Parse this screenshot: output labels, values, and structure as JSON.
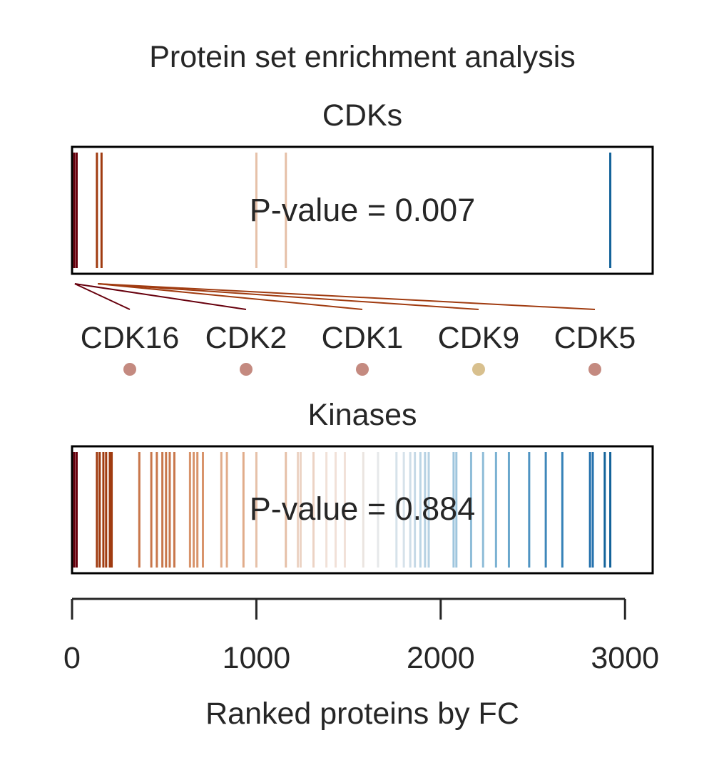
{
  "chart_data": {
    "type": "barcode",
    "title": "Protein set enrichment analysis",
    "xlabel": "Ranked proteins by FC",
    "xlim": [
      0,
      3150
    ],
    "xticks": [
      0,
      1000,
      2000,
      3000
    ],
    "xtick_labels": [
      "0",
      "1000",
      "2000",
      "3000"
    ],
    "panels": [
      {
        "name": "CDKs",
        "pvalue_text": "P-value = 0.007",
        "ranks": [
          {
            "x": 12,
            "color": "#67000d"
          },
          {
            "x": 25,
            "color": "#67000d"
          },
          {
            "x": 135,
            "color": "#a03b10"
          },
          {
            "x": 160,
            "color": "#a03b10"
          },
          {
            "x": 1000,
            "color": "#e6c0a8"
          },
          {
            "x": 1160,
            "color": "#e6c0a8"
          },
          {
            "x": 2920,
            "color": "#14639a"
          }
        ]
      },
      {
        "name": "Kinases",
        "pvalue_text": "P-value = 0.884",
        "ranks": [
          {
            "x": 12,
            "color": "#67000d"
          },
          {
            "x": 25,
            "color": "#67000d"
          },
          {
            "x": 135,
            "color": "#a03b10"
          },
          {
            "x": 150,
            "color": "#a03b10"
          },
          {
            "x": 170,
            "color": "#a03b10"
          },
          {
            "x": 185,
            "color": "#a03b10"
          },
          {
            "x": 205,
            "color": "#a03b10"
          },
          {
            "x": 215,
            "color": "#a03b10"
          },
          {
            "x": 365,
            "color": "#c8764a"
          },
          {
            "x": 430,
            "color": "#c8764a"
          },
          {
            "x": 460,
            "color": "#c8764a"
          },
          {
            "x": 490,
            "color": "#c8764a"
          },
          {
            "x": 510,
            "color": "#c8764a"
          },
          {
            "x": 530,
            "color": "#c8764a"
          },
          {
            "x": 555,
            "color": "#c8764a"
          },
          {
            "x": 640,
            "color": "#d8936a"
          },
          {
            "x": 660,
            "color": "#d8936a"
          },
          {
            "x": 680,
            "color": "#d8936a"
          },
          {
            "x": 710,
            "color": "#d8936a"
          },
          {
            "x": 810,
            "color": "#e1ac8a"
          },
          {
            "x": 840,
            "color": "#e1ac8a"
          },
          {
            "x": 930,
            "color": "#e1ac8a"
          },
          {
            "x": 1000,
            "color": "#e6c0a8"
          },
          {
            "x": 1160,
            "color": "#e6c0a8"
          },
          {
            "x": 1225,
            "color": "#ecd3c4"
          },
          {
            "x": 1240,
            "color": "#ecd3c4"
          },
          {
            "x": 1310,
            "color": "#ecd3c4"
          },
          {
            "x": 1380,
            "color": "#f1e1d8"
          },
          {
            "x": 1430,
            "color": "#f1e1d8"
          },
          {
            "x": 1480,
            "color": "#f1e1d8"
          },
          {
            "x": 1580,
            "color": "#ebe4e0"
          },
          {
            "x": 1660,
            "color": "#e6e8ea"
          },
          {
            "x": 1760,
            "color": "#d6e2ea"
          },
          {
            "x": 1800,
            "color": "#d6e2ea"
          },
          {
            "x": 1835,
            "color": "#cfdee8"
          },
          {
            "x": 1860,
            "color": "#c5d9e6"
          },
          {
            "x": 1890,
            "color": "#bcd5e5"
          },
          {
            "x": 1915,
            "color": "#b6d1e3"
          },
          {
            "x": 1935,
            "color": "#b6d1e3"
          },
          {
            "x": 2070,
            "color": "#9ec5dd"
          },
          {
            "x": 2085,
            "color": "#9ec5dd"
          },
          {
            "x": 2165,
            "color": "#8fbdd8"
          },
          {
            "x": 2230,
            "color": "#8fbdd8"
          },
          {
            "x": 2300,
            "color": "#7ab1d2"
          },
          {
            "x": 2370,
            "color": "#68a6cc"
          },
          {
            "x": 2480,
            "color": "#4f93c2"
          },
          {
            "x": 2570,
            "color": "#3e87ba"
          },
          {
            "x": 2660,
            "color": "#3582b8"
          },
          {
            "x": 2810,
            "color": "#2471ad"
          },
          {
            "x": 2825,
            "color": "#2471ad"
          },
          {
            "x": 2890,
            "color": "#14639a"
          },
          {
            "x": 2920,
            "color": "#14639a"
          }
        ]
      }
    ],
    "annotations": [
      {
        "label": "CDK16",
        "rank": 15,
        "line_color": "#67000d",
        "dot_color": "#c48a80"
      },
      {
        "label": "CDK2",
        "rank": 15,
        "line_color": "#67000d",
        "dot_color": "#c48a80"
      },
      {
        "label": "CDK1",
        "rank": 140,
        "line_color": "#a03b10",
        "dot_color": "#c48a80"
      },
      {
        "label": "CDK9",
        "rank": 140,
        "line_color": "#a03b10",
        "dot_color": "#d8c08e"
      },
      {
        "label": "CDK5",
        "rank": 140,
        "line_color": "#a03b10",
        "dot_color": "#c48a80"
      }
    ]
  }
}
